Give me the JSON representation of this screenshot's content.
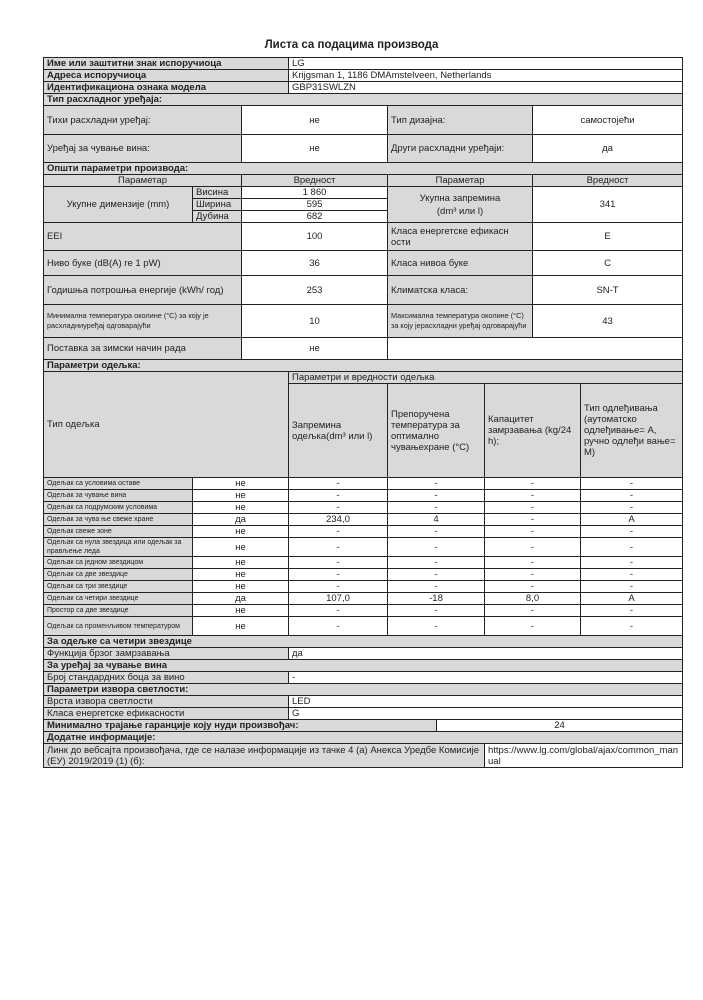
{
  "title": "Листа са подацима производа",
  "supplier": {
    "name_label": "Име или заштитни знак испоручиоца",
    "name_value": "LG",
    "address_label": "Адреса испоручиоца",
    "address_value": "Krijgsman 1, 1186 DMAmstelveen, Netherlands",
    "model_label": "Идентификациона ознака модела",
    "model_value": "GBP31SWLZN"
  },
  "appliance_type": {
    "header": "Тип расхладног уређаја:",
    "quiet_label": "Тихи расхладни уређај:",
    "quiet_value": "не",
    "design_label": "Тип дизајна:",
    "design_value": "самостојећи",
    "wine_label": "Уређај за чување вина:",
    "wine_value": "не",
    "other_label": "Други расхладни уређаји:",
    "other_value": "да"
  },
  "general": {
    "header": "Општи параметри производа:",
    "col_param": "Параметар",
    "col_value": "Вредност",
    "dimensions_label": "Укупне димензије (mm)",
    "height_label": "Висина",
    "height_value": "1 860",
    "width_label": "Ширина",
    "width_value": "595",
    "depth_label": "Дубина",
    "depth_value": "682",
    "volume_label": "Укупна запремина",
    "volume_label2": "(dm³ или l)",
    "volume_value": "341",
    "eei_label": "EEI",
    "eei_value": "100",
    "energy_class_label": "Класа енергетске ефикасн ости",
    "energy_class_value": "E",
    "noise_label": "Ниво буке (dB(A) re 1 pW)",
    "noise_value": "36",
    "noise_class_label": "Класа нивоа буке",
    "noise_class_value": "C",
    "consumption_label": "Годишња потрошња енергије (kWh/ год)",
    "consumption_value": "253",
    "climate_label": "Климатска класа:",
    "climate_value": "SN-T",
    "min_temp_label": "Минимална температура околине (°C) за коју је расхладниуређај одговарајући",
    "min_temp_value": "10",
    "max_temp_label": "Максимална температура околине (°C) за коју јерасхладни уређај одговарајући",
    "max_temp_value": "43",
    "winter_label": "Поставка за зимски начин рада",
    "winter_value": "не"
  },
  "compartments": {
    "header": "Параметри одељка:",
    "type_label": "Тип одељка",
    "group_label": "Параметри и вредности одељка",
    "col_volume": "Запремина одељка(dm³ или l)",
    "col_temp": "Препоручена температура за оптимално чувањехране (°C)",
    "col_capacity": "Капацитет замрзавања (kg/24 h);",
    "col_defrost": "Тип одлеђивања (аутоматско одлеђивање= A, ручно одлеђи вање= M)",
    "rows": [
      {
        "name": "Одељак са условима оставе",
        "present": "не",
        "volume": "-",
        "temp": "-",
        "capacity": "-",
        "defrost": "-"
      },
      {
        "name": "Одељак за чување вина",
        "present": "не",
        "volume": "-",
        "temp": "-",
        "capacity": "-",
        "defrost": "-"
      },
      {
        "name": "Одељак са подрумским условима",
        "present": "не",
        "volume": "-",
        "temp": "-",
        "capacity": "-",
        "defrost": "-"
      },
      {
        "name": "Одељак за чува ње свеже хране",
        "present": "да",
        "volume": "234,0",
        "temp": "4",
        "capacity": "-",
        "defrost": "A"
      },
      {
        "name": "Одељак свеже зоне",
        "present": "не",
        "volume": "-",
        "temp": "-",
        "capacity": "-",
        "defrost": "-"
      },
      {
        "name": "Одељак са нула звездица или одељак за прављење леда",
        "present": "не",
        "volume": "-",
        "temp": "-",
        "capacity": "-",
        "defrost": "-"
      },
      {
        "name": "Одељак са једном звездицом",
        "present": "не",
        "volume": "-",
        "temp": "-",
        "capacity": "-",
        "defrost": "-"
      },
      {
        "name": "Одељак са две звездице",
        "present": "не",
        "volume": "-",
        "temp": "-",
        "capacity": "-",
        "defrost": "-"
      },
      {
        "name": "Одељак са три звездице",
        "present": "не",
        "volume": "-",
        "temp": "-",
        "capacity": "-",
        "defrost": "-"
      },
      {
        "name": "Одељак са четири звездице",
        "present": "да",
        "volume": "107,0",
        "temp": "-18",
        "capacity": "8,0",
        "defrost": "A"
      },
      {
        "name": "Простор са две звездице",
        "present": "не",
        "volume": "-",
        "temp": "-",
        "capacity": "-",
        "defrost": "-"
      },
      {
        "name": "Одељак са променљивом температуром",
        "present": "не",
        "volume": "-",
        "temp": "-",
        "capacity": "-",
        "defrost": "-"
      }
    ]
  },
  "four_star": {
    "header": "За одељке са четири звездице",
    "fast_freeze_label": "Функција брзог замрзавања",
    "fast_freeze_value": "да"
  },
  "wine": {
    "header": "За уређај за чување вина",
    "bottles_label": "Број стандардних боца за вино",
    "bottles_value": "-"
  },
  "light": {
    "header": "Параметри извора светлости:",
    "type_label": "Врста извора светлости",
    "type_value": "LED",
    "class_label": "Класа енергетске ефикасности",
    "class_value": "G"
  },
  "warranty": {
    "label": "Минимално трајање гаранције коју нуди произвођач:",
    "value": "24"
  },
  "additional": {
    "header": "Додатне информације:",
    "link_label": "Линк до вебсајта произвођача, где се налазе информације из тачке 4 (а) Анекса Уредбе Комисије (ЕУ) 2019/2019 (1) (б):",
    "link_value": "https://www.lg.com/global/ajax/common_manual"
  }
}
